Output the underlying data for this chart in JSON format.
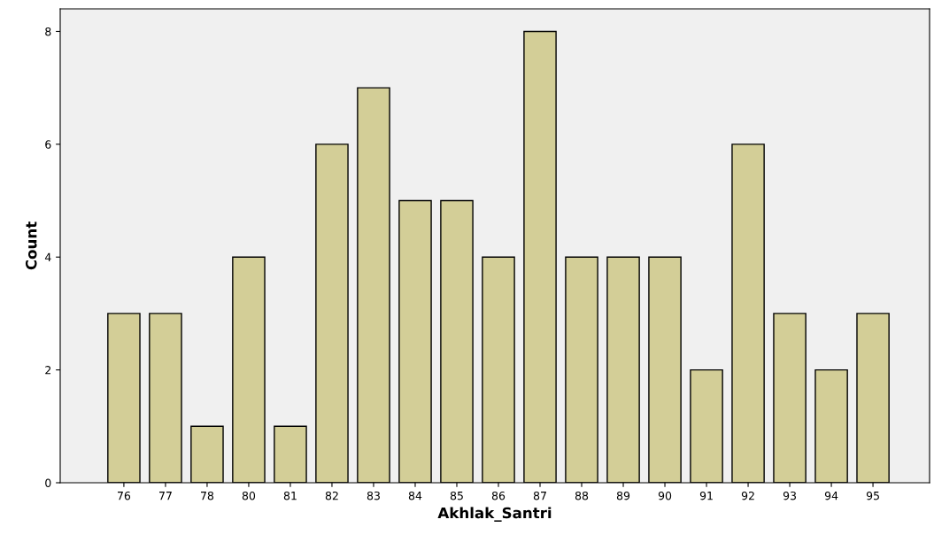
{
  "chart_data": {
    "type": "bar",
    "xlabel": "Akhlak_Santri",
    "ylabel": "Count",
    "categories": [
      "76",
      "77",
      "78",
      "80",
      "81",
      "82",
      "83",
      "84",
      "85",
      "86",
      "87",
      "88",
      "89",
      "90",
      "91",
      "92",
      "93",
      "94",
      "95"
    ],
    "values": [
      3,
      3,
      1,
      4,
      1,
      6,
      7,
      5,
      5,
      4,
      8,
      4,
      4,
      4,
      2,
      6,
      3,
      2,
      3
    ],
    "color": "#d3ce97",
    "ylim": [
      0,
      8.4
    ],
    "yticks": [
      0,
      2,
      4,
      6,
      8
    ],
    "grid": false
  }
}
